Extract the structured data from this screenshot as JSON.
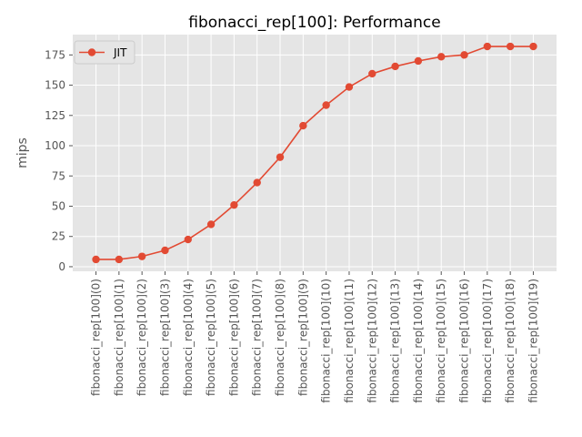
{
  "chart_data": {
    "type": "line",
    "title": "fibonacci_rep[100]: Performance",
    "xlabel": "",
    "ylabel": "mips",
    "categories": [
      "fibonacci_rep[100](0)",
      "fibonacci_rep[100](1)",
      "fibonacci_rep[100](2)",
      "fibonacci_rep[100](3)",
      "fibonacci_rep[100](4)",
      "fibonacci_rep[100](5)",
      "fibonacci_rep[100](6)",
      "fibonacci_rep[100](7)",
      "fibonacci_rep[100](8)",
      "fibonacci_rep[100](9)",
      "fibonacci_rep[100](10)",
      "fibonacci_rep[100](11)",
      "fibonacci_rep[100](12)",
      "fibonacci_rep[100](13)",
      "fibonacci_rep[100](14)",
      "fibonacci_rep[100](15)",
      "fibonacci_rep[100](16)",
      "fibonacci_rep[100](17)",
      "fibonacci_rep[100](18)",
      "fibonacci_rep[100](19)"
    ],
    "series": [
      {
        "name": "JIT",
        "color": "#E24A33",
        "values": [
          6,
          6,
          8.5,
          13.5,
          22.5,
          35,
          51,
          69.5,
          90.5,
          116.5,
          133.5,
          148.5,
          159.5,
          165.5,
          170,
          173.5,
          175,
          182,
          182,
          182
        ]
      }
    ],
    "yticks": [
      0,
      25,
      50,
      75,
      100,
      125,
      150,
      175
    ],
    "ylim": [
      -3.8,
      191.8
    ],
    "grid": true,
    "legend_position": "top-left",
    "background": "#E5E5E5",
    "grid_color": "#FFFFFF"
  }
}
